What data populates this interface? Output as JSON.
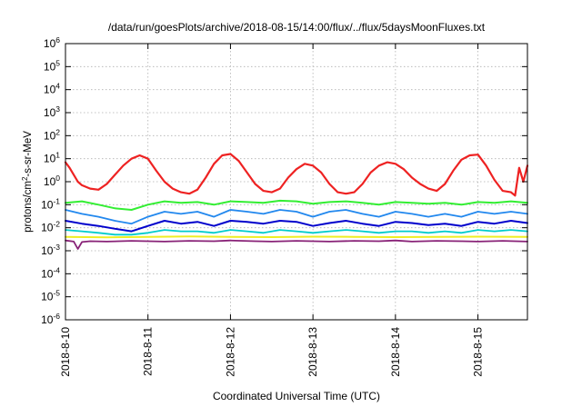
{
  "chart_data": {
    "type": "line",
    "title": "/data/run/goesPlots/archive/2018-08-15/14:00/flux/../flux/5daysMoonFluxes.txt",
    "xlabel": "Coordinated Universal Time (UTC)",
    "ylabel_parts": [
      "protons/cm",
      "2",
      "-s-sr-MeV"
    ],
    "y_scale": "log",
    "ylim": [
      1e-06,
      1000000.0
    ],
    "y_ticks": [
      {
        "value": 1e-06,
        "base": "10",
        "exp": "-6"
      },
      {
        "value": 1e-05,
        "base": "10",
        "exp": "-5"
      },
      {
        "value": 0.0001,
        "base": "10",
        "exp": "-4"
      },
      {
        "value": 0.001,
        "base": "10",
        "exp": "-3"
      },
      {
        "value": 0.01,
        "base": "10",
        "exp": "-2"
      },
      {
        "value": 0.1,
        "base": "10",
        "exp": "-1"
      },
      {
        "value": 1,
        "base": "10",
        "exp": "0"
      },
      {
        "value": 10,
        "base": "10",
        "exp": "1"
      },
      {
        "value": 100,
        "base": "10",
        "exp": "2"
      },
      {
        "value": 1000,
        "base": "10",
        "exp": "3"
      },
      {
        "value": 10000,
        "base": "10",
        "exp": "4"
      },
      {
        "value": 100000,
        "base": "10",
        "exp": "5"
      },
      {
        "value": 1000000,
        "base": "10",
        "exp": "6"
      }
    ],
    "xlim": [
      0,
      5.6
    ],
    "x_ticks": [
      {
        "value": 0,
        "label": "2018-8-10"
      },
      {
        "value": 1,
        "label": "2018-8-11"
      },
      {
        "value": 2,
        "label": "2018-8-12"
      },
      {
        "value": 3,
        "label": "2018-8-13"
      },
      {
        "value": 4,
        "label": "2018-8-14"
      },
      {
        "value": 5,
        "label": "2018-8-15"
      }
    ],
    "grid": true,
    "series": [
      {
        "color": "#ee2222",
        "width": 2.2,
        "x": [
          0,
          0.05,
          0.1,
          0.15,
          0.2,
          0.3,
          0.4,
          0.5,
          0.6,
          0.7,
          0.8,
          0.9,
          1.0,
          1.1,
          1.2,
          1.3,
          1.4,
          1.5,
          1.6,
          1.7,
          1.8,
          1.9,
          2.0,
          2.1,
          2.2,
          2.3,
          2.4,
          2.5,
          2.6,
          2.7,
          2.8,
          2.9,
          3.0,
          3.1,
          3.2,
          3.3,
          3.4,
          3.5,
          3.6,
          3.7,
          3.8,
          3.9,
          4.0,
          4.1,
          4.2,
          4.3,
          4.4,
          4.5,
          4.6,
          4.7,
          4.8,
          4.9,
          5.0,
          5.1,
          5.2,
          5.3,
          5.4,
          5.45,
          5.5,
          5.55,
          5.6
        ],
        "y": [
          7,
          4,
          2,
          1,
          0.7,
          0.5,
          0.45,
          0.8,
          2,
          5,
          10,
          14,
          10,
          3,
          1,
          0.5,
          0.35,
          0.3,
          0.45,
          1.5,
          6,
          14,
          16,
          8,
          2.5,
          0.8,
          0.4,
          0.35,
          0.5,
          1.5,
          3.5,
          6,
          5,
          2.5,
          0.8,
          0.35,
          0.3,
          0.35,
          0.8,
          2.5,
          5,
          7,
          6,
          3.5,
          1.5,
          0.8,
          0.5,
          0.4,
          0.8,
          3,
          9,
          14,
          15,
          5,
          1.2,
          0.4,
          0.35,
          0.25,
          4,
          1,
          5
        ]
      },
      {
        "color": "#33ee33",
        "width": 2,
        "x": [
          0,
          0.2,
          0.4,
          0.6,
          0.8,
          1.0,
          1.2,
          1.4,
          1.6,
          1.8,
          2.0,
          2.2,
          2.4,
          2.6,
          2.8,
          3.0,
          3.2,
          3.4,
          3.6,
          3.8,
          4.0,
          4.2,
          4.4,
          4.6,
          4.8,
          5.0,
          5.2,
          5.4,
          5.6
        ],
        "y": [
          0.12,
          0.14,
          0.1,
          0.07,
          0.06,
          0.1,
          0.14,
          0.12,
          0.13,
          0.1,
          0.14,
          0.13,
          0.12,
          0.15,
          0.14,
          0.11,
          0.13,
          0.14,
          0.12,
          0.1,
          0.13,
          0.12,
          0.11,
          0.12,
          0.1,
          0.13,
          0.12,
          0.14,
          0.12
        ]
      },
      {
        "color": "#2288ee",
        "width": 1.8,
        "x": [
          0,
          0.2,
          0.4,
          0.6,
          0.8,
          1.0,
          1.2,
          1.4,
          1.6,
          1.8,
          2.0,
          2.2,
          2.4,
          2.6,
          2.8,
          3.0,
          3.2,
          3.4,
          3.6,
          3.8,
          4.0,
          4.2,
          4.4,
          4.6,
          4.8,
          5.0,
          5.2,
          5.4,
          5.6
        ],
        "y": [
          0.06,
          0.04,
          0.03,
          0.02,
          0.015,
          0.03,
          0.05,
          0.04,
          0.05,
          0.03,
          0.06,
          0.05,
          0.04,
          0.06,
          0.05,
          0.03,
          0.05,
          0.06,
          0.04,
          0.03,
          0.05,
          0.04,
          0.03,
          0.04,
          0.03,
          0.05,
          0.04,
          0.05,
          0.04
        ]
      },
      {
        "color": "#0000cc",
        "width": 2,
        "x": [
          0,
          0.2,
          0.4,
          0.6,
          0.8,
          1.0,
          1.2,
          1.4,
          1.6,
          1.8,
          2.0,
          2.2,
          2.4,
          2.6,
          2.8,
          3.0,
          3.2,
          3.4,
          3.6,
          3.8,
          4.0,
          4.2,
          4.4,
          4.6,
          4.8,
          5.0,
          5.2,
          5.4,
          5.6
        ],
        "y": [
          0.02,
          0.015,
          0.012,
          0.009,
          0.007,
          0.012,
          0.02,
          0.015,
          0.018,
          0.012,
          0.02,
          0.018,
          0.015,
          0.02,
          0.018,
          0.012,
          0.016,
          0.02,
          0.015,
          0.012,
          0.018,
          0.016,
          0.013,
          0.015,
          0.012,
          0.018,
          0.015,
          0.02,
          0.016
        ]
      },
      {
        "color": "#00cccc",
        "width": 1.8,
        "x": [
          0,
          0.2,
          0.4,
          0.6,
          0.8,
          1.0,
          1.2,
          1.4,
          1.6,
          1.8,
          2.0,
          2.2,
          2.4,
          2.6,
          2.8,
          3.0,
          3.2,
          3.4,
          3.6,
          3.8,
          4.0,
          4.2,
          4.4,
          4.6,
          4.8,
          5.0,
          5.2,
          5.4,
          5.6
        ],
        "y": [
          0.008,
          0.007,
          0.006,
          0.005,
          0.005,
          0.006,
          0.008,
          0.007,
          0.007,
          0.006,
          0.008,
          0.007,
          0.006,
          0.008,
          0.007,
          0.006,
          0.007,
          0.008,
          0.007,
          0.006,
          0.007,
          0.007,
          0.006,
          0.007,
          0.006,
          0.008,
          0.007,
          0.008,
          0.007
        ]
      },
      {
        "color": "#eeee22",
        "width": 2,
        "x": [
          0,
          0.5,
          1.0,
          1.5,
          2.0,
          2.5,
          3.0,
          3.5,
          4.0,
          4.5,
          5.0,
          5.6
        ],
        "y": [
          0.004,
          0.0038,
          0.004,
          0.0042,
          0.004,
          0.0039,
          0.0041,
          0.004,
          0.0039,
          0.004,
          0.0041,
          0.004
        ]
      },
      {
        "color": "#882277",
        "width": 1.8,
        "x": [
          0,
          0.1,
          0.15,
          0.2,
          0.3,
          0.5,
          0.8,
          1.0,
          1.2,
          1.5,
          1.8,
          2.0,
          2.3,
          2.5,
          2.8,
          3.0,
          3.2,
          3.5,
          3.8,
          4.0,
          4.2,
          4.5,
          4.8,
          5.0,
          5.3,
          5.6
        ],
        "y": [
          0.0028,
          0.0025,
          0.0012,
          0.0024,
          0.0026,
          0.0025,
          0.0027,
          0.0026,
          0.0025,
          0.0027,
          0.0026,
          0.0028,
          0.0026,
          0.0025,
          0.0027,
          0.0026,
          0.0025,
          0.0027,
          0.0026,
          0.0028,
          0.0025,
          0.0027,
          0.0026,
          0.0025,
          0.0027,
          0.0025
        ]
      }
    ]
  }
}
